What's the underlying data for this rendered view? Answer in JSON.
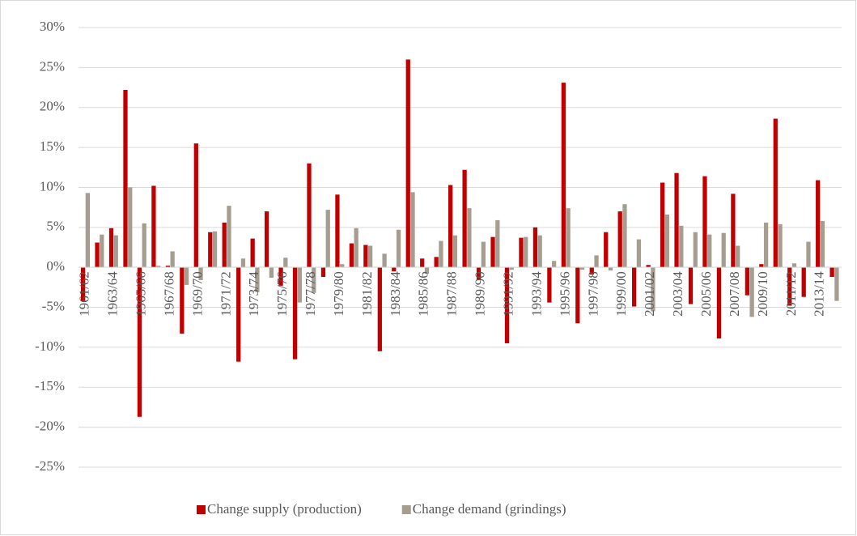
{
  "chart_data": {
    "type": "bar",
    "categories": [
      "1961/62",
      null,
      "1963/64",
      null,
      "1965/66",
      null,
      "1967/68",
      null,
      "1969/70",
      null,
      "1971/72",
      null,
      "1973/74",
      null,
      "1975/76",
      null,
      "1977/78",
      null,
      "1979/80",
      null,
      "1981/82",
      null,
      "1983/84",
      null,
      "1985/86",
      null,
      "1987/88",
      null,
      "1989/90",
      null,
      "1991/92",
      null,
      "1993/94",
      null,
      "1995/96",
      null,
      "1997/98",
      null,
      "1999/00",
      null,
      "2001/02",
      null,
      "2003/04",
      null,
      "2005/06",
      null,
      "2007/08",
      null,
      "2009/10",
      null,
      "2011/12",
      null,
      "2013/14",
      null
    ],
    "series": [
      {
        "name": "Change supply (production)",
        "color": "#c00000",
        "values": [
          -4.2,
          3.1,
          4.9,
          22.2,
          -18.7,
          10.2,
          0.2,
          -8.3,
          15.5,
          4.4,
          5.6,
          -11.8,
          3.6,
          7.0,
          -2.3,
          -11.5,
          13.0,
          -1.2,
          9.1,
          3.0,
          2.8,
          -10.5,
          -0.5,
          26.0,
          1.1,
          1.3,
          10.3,
          12.2,
          -1.6,
          3.8,
          -9.5,
          3.7,
          5.0,
          -4.4,
          23.1,
          -7.0,
          -0.9,
          4.4,
          7.0,
          -4.9,
          0.3,
          10.6,
          11.8,
          -4.6,
          11.4,
          -8.9,
          9.2,
          -3.5,
          0.4,
          18.6,
          -4.8,
          -3.7,
          10.9,
          -1.2
        ]
      },
      {
        "name": "Change demand (grindings)",
        "color": "#a59d8f",
        "values": [
          9.3,
          4.1,
          4.0,
          10.0,
          5.5,
          0.2,
          2.0,
          -2.2,
          -1.6,
          4.5,
          7.7,
          1.1,
          -3.1,
          -1.3,
          1.2,
          -4.4,
          -3.2,
          7.2,
          0.4,
          4.9,
          2.7,
          1.7,
          4.7,
          9.4,
          -0.8,
          3.3,
          4.0,
          7.4,
          3.2,
          5.9,
          -0.3,
          3.8,
          4.0,
          0.8,
          7.4,
          -0.3,
          1.5,
          -0.4,
          7.9,
          3.5,
          -5.5,
          6.6,
          5.2,
          4.4,
          4.1,
          4.3,
          2.7,
          -6.2,
          5.6,
          5.4,
          0.5,
          3.2,
          5.8,
          -4.2
        ]
      }
    ],
    "ylim": [
      -25,
      30
    ],
    "yticks": [
      {
        "value": -25,
        "label": "-25%"
      },
      {
        "value": -20,
        "label": "-20%"
      },
      {
        "value": -15,
        "label": "-15%"
      },
      {
        "value": -10,
        "label": "-10%"
      },
      {
        "value": -5,
        "label": "-5%"
      },
      {
        "value": 0,
        "label": "0%"
      },
      {
        "value": 5,
        "label": "5%"
      },
      {
        "value": 10,
        "label": "10%"
      },
      {
        "value": 15,
        "label": "15%"
      },
      {
        "value": 20,
        "label": "20%"
      },
      {
        "value": 25,
        "label": "25%"
      },
      {
        "value": 30,
        "label": "30%"
      }
    ],
    "grid": true,
    "legend": "bottom"
  }
}
